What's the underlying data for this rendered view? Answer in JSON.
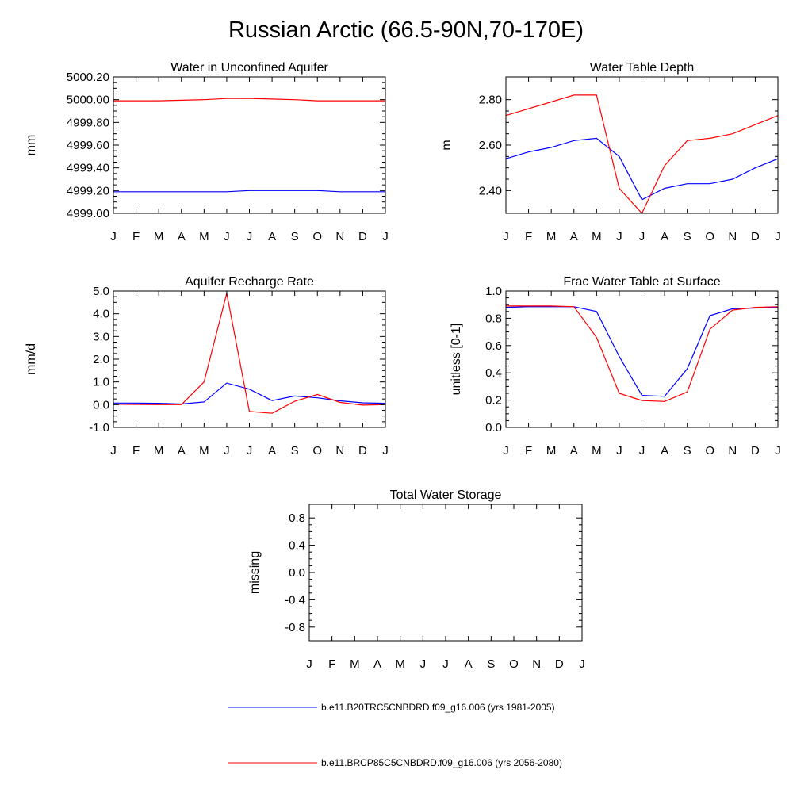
{
  "title": "Russian Arctic (66.5-90N,70-170E)",
  "colors": {
    "series1": "#0000ff",
    "series2": "#ff0000",
    "axis": "#000000"
  },
  "months": [
    "J",
    "F",
    "M",
    "A",
    "M",
    "J",
    "J",
    "A",
    "S",
    "O",
    "N",
    "D",
    "J"
  ],
  "legend": [
    {
      "label": "b.e11.B20TRC5CNBDRD.f09_g16.006 (yrs 1981-2005)",
      "color": "#0000ff"
    },
    {
      "label": "b.e11.BRCP85C5CNBDRD.f09_g16.006 (yrs 2056-2080)",
      "color": "#ff0000"
    }
  ],
  "chart_data": [
    {
      "type": "line",
      "title": "Water in Unconfined Aquifer",
      "ylabel": "mm",
      "ylim": [
        4999.0,
        5000.2
      ],
      "yticks": [
        4999.0,
        4999.2,
        4999.4,
        4999.6,
        4999.8,
        5000.0,
        5000.2
      ],
      "ytick_labels": [
        "4999.00",
        "4999.20",
        "4999.40",
        "4999.60",
        "4999.80",
        "5000.00",
        "5000.20"
      ],
      "series": [
        {
          "name": "b.e11.B20TRC5CNBDRD.f09_g16.006 (yrs 1981-2005)",
          "values": [
            4999.19,
            4999.19,
            4999.19,
            4999.19,
            4999.19,
            4999.19,
            4999.2,
            4999.2,
            4999.2,
            4999.2,
            4999.19,
            4999.19,
            4999.19
          ]
        },
        {
          "name": "b.e11.BRCP85C5CNBDRD.f09_g16.006 (yrs 2056-2080)",
          "values": [
            4999.99,
            4999.99,
            4999.99,
            4999.995,
            5000.0,
            5000.01,
            5000.01,
            5000.005,
            5000.0,
            4999.99,
            4999.99,
            4999.99,
            4999.99
          ]
        }
      ]
    },
    {
      "type": "line",
      "title": "Water Table Depth",
      "ylabel": "m",
      "ylim": [
        2.3,
        2.9
      ],
      "yticks": [
        2.4,
        2.6,
        2.8
      ],
      "ytick_labels": [
        "2.40",
        "2.60",
        "2.80"
      ],
      "series": [
        {
          "name": "b.e11.B20TRC5CNBDRD.f09_g16.006 (yrs 1981-2005)",
          "values": [
            2.54,
            2.57,
            2.59,
            2.62,
            2.63,
            2.55,
            2.36,
            2.41,
            2.43,
            2.43,
            2.45,
            2.5,
            2.54
          ]
        },
        {
          "name": "b.e11.BRCP85C5CNBDRD.f09_g16.006 (yrs 2056-2080)",
          "values": [
            2.73,
            2.76,
            2.79,
            2.82,
            2.82,
            2.41,
            2.3,
            2.51,
            2.62,
            2.63,
            2.65,
            2.69,
            2.73
          ]
        }
      ]
    },
    {
      "type": "line",
      "title": "Aquifer Recharge Rate",
      "ylabel": "mm/d",
      "ylim": [
        -1.0,
        5.0
      ],
      "yticks": [
        -1.0,
        0.0,
        1.0,
        2.0,
        3.0,
        4.0,
        5.0
      ],
      "ytick_labels": [
        "-1.0",
        "0.0",
        "1.0",
        "2.0",
        "3.0",
        "4.0",
        "5.0"
      ],
      "series": [
        {
          "name": "b.e11.B20TRC5CNBDRD.f09_g16.006 (yrs 1981-2005)",
          "values": [
            0.07,
            0.07,
            0.06,
            0.03,
            0.12,
            0.95,
            0.68,
            0.18,
            0.38,
            0.3,
            0.17,
            0.08,
            0.06
          ]
        },
        {
          "name": "b.e11.BRCP85C5CNBDRD.f09_g16.006 (yrs 2056-2080)",
          "values": [
            0.02,
            0.01,
            0.0,
            0.0,
            1.0,
            4.9,
            -0.3,
            -0.38,
            0.15,
            0.45,
            0.1,
            -0.02,
            0.0
          ]
        }
      ]
    },
    {
      "type": "line",
      "title": "Frac Water Table at Surface",
      "ylabel": "unitless [0-1]",
      "ylim": [
        0.0,
        1.0
      ],
      "yticks": [
        0.0,
        0.2,
        0.4,
        0.6,
        0.8,
        1.0
      ],
      "ytick_labels": [
        "0.0",
        "0.2",
        "0.4",
        "0.6",
        "0.8",
        "1.0"
      ],
      "series": [
        {
          "name": "b.e11.B20TRC5CNBDRD.f09_g16.006 (yrs 1981-2005)",
          "values": [
            0.88,
            0.885,
            0.885,
            0.885,
            0.85,
            0.52,
            0.235,
            0.228,
            0.43,
            0.82,
            0.87,
            0.875,
            0.88
          ]
        },
        {
          "name": "b.e11.BRCP85C5CNBDRD.f09_g16.006 (yrs 2056-2080)",
          "values": [
            0.89,
            0.89,
            0.89,
            0.885,
            0.66,
            0.25,
            0.197,
            0.19,
            0.26,
            0.72,
            0.86,
            0.88,
            0.885
          ]
        }
      ]
    },
    {
      "type": "line",
      "title": "Total Water Storage",
      "ylabel": "missing",
      "ylim": [
        -1.0,
        1.0
      ],
      "yticks": [
        -0.8,
        -0.4,
        0.0,
        0.4,
        0.8
      ],
      "ytick_labels": [
        "-0.8",
        "-0.4",
        "0.0",
        "0.4",
        "0.8"
      ],
      "series": []
    }
  ]
}
